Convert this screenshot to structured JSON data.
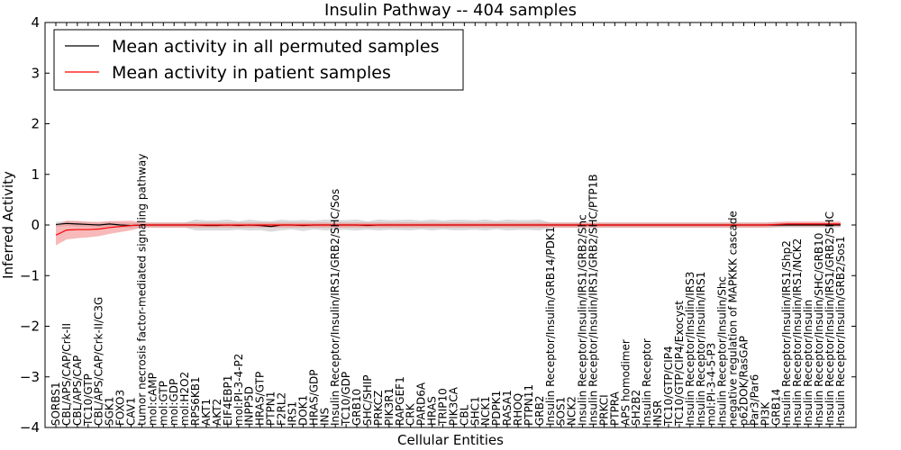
{
  "chart_data": {
    "type": "line",
    "title": "Insulin Pathway -- 404 samples",
    "xlabel": "Cellular Entities",
    "ylabel": "Inferred Activity",
    "ylim": [
      -4,
      4
    ],
    "yticks": [
      -4,
      -3,
      -2,
      -1,
      0,
      1,
      2,
      3,
      4
    ],
    "legend_position": "top-left",
    "colors": {
      "permuted": "#000000",
      "patient": "#ff0000",
      "band_patient": "#f08080",
      "band_permuted": "#b0b0b0"
    },
    "categories": [
      "SORBS1",
      "CBL/APS/CAP/Crk-II",
      "CBL/APS/CAP",
      "TC10/GTP",
      "CBL/APS/CAP/Crk-II/C3G",
      "SGK1",
      "FOXO3",
      "CAV1",
      "tumor necrosis factor-mediated signaling pathway",
      "mol:cAMP",
      "mol:GTP",
      "mol:GDP",
      "mol:H2O2",
      "RPS6KB1",
      "AKT1",
      "AKT2",
      "EIF4EBP1",
      "mol:PI-3-4-P2",
      "INPP5D",
      "HRAS/GTP",
      "PTPN1",
      "F2RL2",
      "IRS1",
      "DOK1",
      "HRAS/GDP",
      "INS",
      "Insulin Receptor/Insulin/IRS1/GRB2/SHC/Sos",
      "TC10/GDP",
      "GRB10",
      "SHC/SHIP",
      "PRKCZ",
      "PIK3R1",
      "RAPGEF1",
      "CRK",
      "PARD6A",
      "HRAS",
      "TRIP10",
      "PIK3CA",
      "CBL",
      "SHC1",
      "NCK1",
      "PDPK1",
      "RASA1",
      "RHOQ",
      "PTPN11",
      "GRB2",
      "Insulin Receptor/Insulin/GRB14/PDK1",
      "SOS1",
      "NCK2",
      "Insulin Receptor/Insulin/IRS1/GRB2/Shc",
      "Insulin Receptor/Insulin/IRS1/GRB2/SHC/PTP1B",
      "PRKCI",
      "PTPRA",
      "APS homodimer",
      "SH2B2",
      "Insulin Receptor",
      "INSR",
      "TC10/GTP/CIP4",
      "TC10/GTP/CIP4/Exocyst",
      "Insulin Receptor/Insulin/IRS3",
      "Insulin Receptor/Insulin/IRS1",
      "mol:PI-3-4-5-P3",
      "Insulin Receptor/Insulin/Shc",
      "negative regulation of MAPKKK cascade",
      "p62DOK/RasGAP",
      "Par3/Par6",
      "PI3K",
      "GRB14",
      "Insulin Receptor/Insulin/IRS1/Shp2",
      "Insulin Receptor/Insulin/IRS1/NCK2",
      "Insulin Receptor/Insulin",
      "Insulin Receptor/Insulin/SHC/GRB10",
      "Insulin Receptor/Insulin/IRS1/GRB2/SHC",
      "Insulin Receptor/Insulin/GRB2/Sos1"
    ],
    "series": [
      {
        "name": "Mean activity in all permuted samples",
        "color": "#000000",
        "values": [
          0.01,
          0.03,
          0.02,
          0.01,
          0.0,
          0.02,
          0.0,
          -0.01,
          0.0,
          0.0,
          0.0,
          0.0,
          0.0,
          0.0,
          -0.01,
          -0.01,
          0.0,
          -0.01,
          0.0,
          -0.01,
          -0.03,
          0.0,
          0.0,
          -0.01,
          0.0,
          0.0,
          0.0,
          0.0,
          0.0,
          -0.01,
          0.0,
          0.0,
          0.0,
          0.0,
          0.0,
          0.0,
          0.0,
          0.0,
          0.0,
          0.0,
          0.0,
          0.0,
          0.0,
          0.0,
          0.0,
          0.0,
          0.0,
          0.0,
          0.0,
          0.0,
          0.0,
          0.0,
          0.0,
          0.0,
          0.0,
          0.0,
          0.0,
          0.0,
          0.0,
          0.0,
          0.0,
          0.0,
          0.0,
          0.0,
          0.0,
          0.0,
          0.0,
          0.0,
          0.0,
          0.0,
          0.0,
          0.0,
          0.0,
          0.0
        ],
        "band": 0.05
      },
      {
        "name": "Mean activity in patient samples",
        "color": "#ff0000",
        "values": [
          -0.2,
          -0.1,
          -0.09,
          -0.09,
          -0.08,
          -0.05,
          -0.03,
          -0.01,
          0.0,
          0.0,
          0.0,
          0.0,
          0.0,
          0.0,
          0.0,
          0.0,
          0.0,
          0.0,
          0.0,
          0.0,
          0.0,
          0.0,
          0.0,
          0.0,
          0.0,
          0.0,
          0.0,
          0.0,
          0.0,
          0.0,
          0.0,
          0.0,
          0.0,
          0.0,
          0.0,
          0.0,
          0.0,
          0.0,
          0.0,
          0.0,
          0.0,
          0.0,
          0.0,
          0.0,
          0.0,
          0.0,
          0.0,
          0.0,
          0.0,
          0.0,
          0.0,
          0.0,
          0.0,
          0.0,
          0.0,
          0.0,
          0.0,
          0.0,
          0.0,
          0.0,
          0.0,
          0.0,
          0.0,
          0.0,
          0.0,
          0.0,
          0.0,
          0.01,
          0.02,
          0.02,
          0.02,
          0.02,
          0.02,
          0.02
        ],
        "band": 0.05
      }
    ]
  }
}
